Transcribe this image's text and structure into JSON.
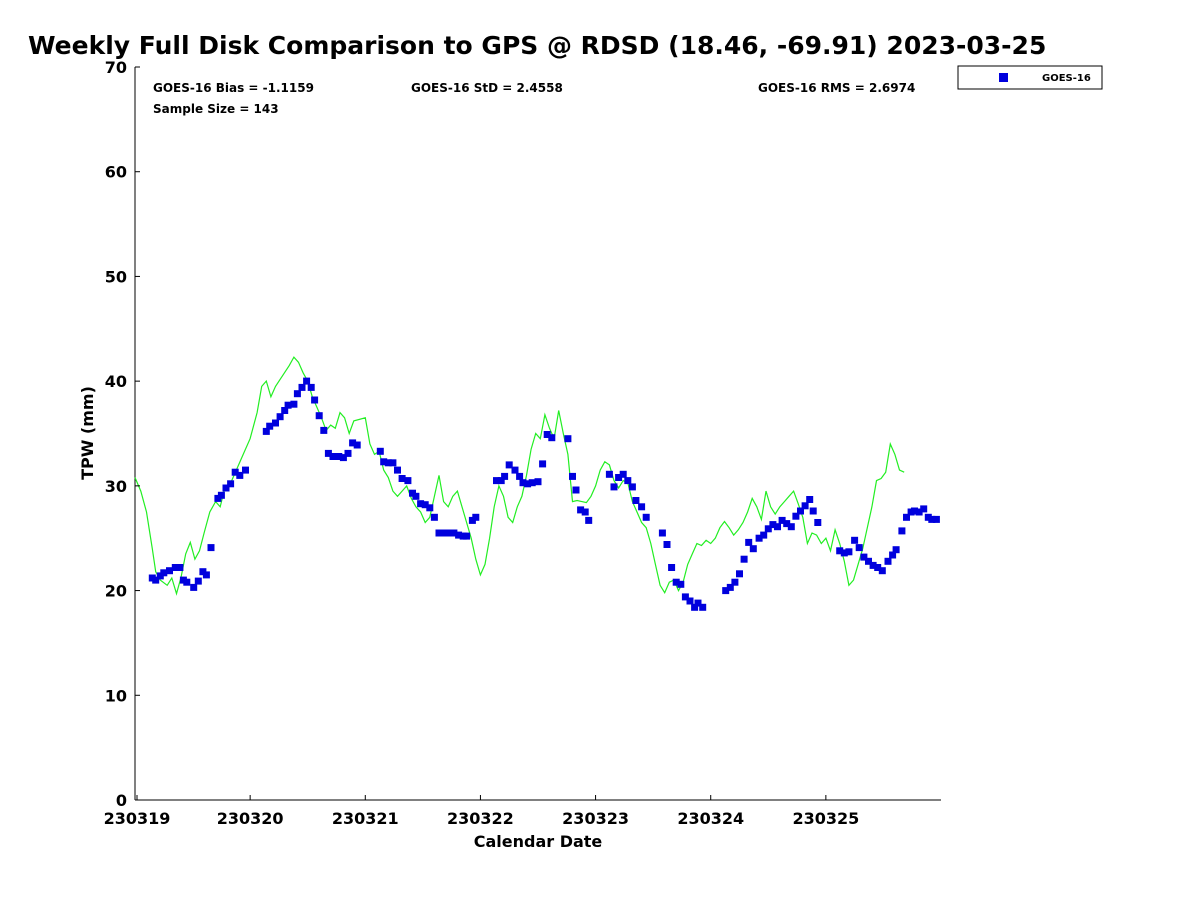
{
  "chart_data": {
    "type": "line+scatter",
    "title": "Weekly Full Disk Comparison to GPS @ RDSD (18.46, -69.91) 2023-03-25",
    "xlabel": "Calendar Date",
    "ylabel": "TPW (mm)",
    "xlim": [
      0,
      7
    ],
    "ylim": [
      0,
      70
    ],
    "yticks": [
      0,
      10,
      20,
      30,
      40,
      50,
      60,
      70
    ],
    "xticks": [
      {
        "value": 0,
        "label": "230319"
      },
      {
        "value": 1,
        "label": "230320"
      },
      {
        "value": 2,
        "label": "230321"
      },
      {
        "value": 3,
        "label": "230322"
      },
      {
        "value": 4,
        "label": "230323"
      },
      {
        "value": 5,
        "label": "230324"
      },
      {
        "value": 6,
        "label": "230325"
      }
    ],
    "stats": {
      "bias": "GOES-16 Bias = -1.1159",
      "std": "GOES-16 StD = 2.4558",
      "rms": "GOES-16 RMS = 2.6974",
      "sample": "Sample Size = 143"
    },
    "legend": {
      "label": "GOES-16",
      "position": "top-right outside"
    },
    "colors": {
      "goes": "#0000dd",
      "gps": "#22ee22"
    },
    "series": [
      {
        "name": "GPS",
        "kind": "line",
        "points": [
          [
            0.0,
            30.8
          ],
          [
            0.05,
            29.5
          ],
          [
            0.1,
            27.5
          ],
          [
            0.15,
            24.0
          ],
          [
            0.18,
            21.8
          ],
          [
            0.22,
            21.0
          ],
          [
            0.28,
            20.5
          ],
          [
            0.32,
            21.2
          ],
          [
            0.36,
            19.7
          ],
          [
            0.4,
            21.3
          ],
          [
            0.44,
            23.5
          ],
          [
            0.48,
            24.6
          ],
          [
            0.52,
            23.0
          ],
          [
            0.56,
            23.8
          ],
          [
            0.6,
            25.5
          ],
          [
            0.65,
            27.5
          ],
          [
            0.7,
            28.5
          ],
          [
            0.74,
            28.0
          ],
          [
            0.78,
            29.8
          ],
          [
            0.82,
            30.0
          ],
          [
            0.88,
            31.5
          ],
          [
            0.94,
            33.0
          ],
          [
            1.0,
            34.5
          ],
          [
            1.06,
            37.0
          ],
          [
            1.1,
            39.5
          ],
          [
            1.14,
            40.0
          ],
          [
            1.18,
            38.5
          ],
          [
            1.22,
            39.5
          ],
          [
            1.28,
            40.5
          ],
          [
            1.34,
            41.5
          ],
          [
            1.38,
            42.3
          ],
          [
            1.42,
            41.8
          ],
          [
            1.46,
            40.8
          ],
          [
            1.5,
            40.0
          ],
          [
            1.54,
            38.5
          ],
          [
            1.58,
            37.5
          ],
          [
            1.62,
            36.5
          ],
          [
            1.66,
            35.3
          ],
          [
            1.7,
            35.8
          ],
          [
            1.74,
            35.5
          ],
          [
            1.78,
            37.0
          ],
          [
            1.82,
            36.5
          ],
          [
            1.86,
            35.0
          ],
          [
            1.9,
            36.2
          ],
          [
            2.0,
            36.5
          ],
          [
            2.04,
            34.0
          ],
          [
            2.08,
            33.0
          ],
          [
            2.12,
            33.3
          ],
          [
            2.16,
            31.5
          ],
          [
            2.2,
            30.8
          ],
          [
            2.24,
            29.5
          ],
          [
            2.28,
            29.0
          ],
          [
            2.32,
            29.5
          ],
          [
            2.36,
            30.0
          ],
          [
            2.4,
            28.8
          ],
          [
            2.44,
            28.0
          ],
          [
            2.48,
            27.5
          ],
          [
            2.52,
            26.5
          ],
          [
            2.56,
            27.0
          ],
          [
            2.6,
            29.0
          ],
          [
            2.64,
            31.0
          ],
          [
            2.68,
            28.5
          ],
          [
            2.72,
            28.0
          ],
          [
            2.76,
            29.0
          ],
          [
            2.8,
            29.5
          ],
          [
            2.84,
            28.0
          ],
          [
            2.88,
            26.5
          ],
          [
            2.92,
            25.0
          ],
          [
            2.96,
            23.0
          ],
          [
            3.0,
            21.5
          ],
          [
            3.04,
            22.5
          ],
          [
            3.08,
            25.0
          ],
          [
            3.12,
            28.0
          ],
          [
            3.16,
            30.0
          ],
          [
            3.2,
            29.0
          ],
          [
            3.24,
            27.0
          ],
          [
            3.28,
            26.5
          ],
          [
            3.32,
            28.0
          ],
          [
            3.36,
            29.0
          ],
          [
            3.4,
            31.0
          ],
          [
            3.44,
            33.5
          ],
          [
            3.48,
            35.0
          ],
          [
            3.52,
            34.5
          ],
          [
            3.56,
            36.8
          ],
          [
            3.6,
            35.5
          ],
          [
            3.64,
            34.5
          ],
          [
            3.68,
            37.2
          ],
          [
            3.72,
            35.0
          ],
          [
            3.76,
            33.0
          ],
          [
            3.8,
            28.5
          ],
          [
            3.84,
            28.6
          ],
          [
            3.88,
            28.5
          ],
          [
            3.92,
            28.4
          ],
          [
            3.96,
            29.0
          ],
          [
            4.0,
            30.0
          ],
          [
            4.04,
            31.5
          ],
          [
            4.08,
            32.3
          ],
          [
            4.12,
            32.0
          ],
          [
            4.16,
            30.5
          ],
          [
            4.2,
            29.8
          ],
          [
            4.24,
            30.5
          ],
          [
            4.28,
            30.3
          ],
          [
            4.32,
            28.5
          ],
          [
            4.36,
            27.5
          ],
          [
            4.4,
            26.5
          ],
          [
            4.44,
            26.0
          ],
          [
            4.48,
            24.5
          ],
          [
            4.52,
            22.5
          ],
          [
            4.56,
            20.5
          ],
          [
            4.6,
            19.8
          ],
          [
            4.64,
            20.8
          ],
          [
            4.68,
            21.0
          ],
          [
            4.72,
            20.0
          ],
          [
            4.76,
            20.8
          ],
          [
            4.8,
            22.5
          ],
          [
            4.84,
            23.5
          ],
          [
            4.88,
            24.5
          ],
          [
            4.92,
            24.3
          ],
          [
            4.96,
            24.8
          ],
          [
            5.0,
            24.5
          ],
          [
            5.04,
            25.0
          ],
          [
            5.08,
            26.0
          ],
          [
            5.12,
            26.6
          ],
          [
            5.16,
            26.0
          ],
          [
            5.2,
            25.3
          ],
          [
            5.24,
            25.8
          ],
          [
            5.28,
            26.5
          ],
          [
            5.32,
            27.5
          ],
          [
            5.36,
            28.8
          ],
          [
            5.4,
            28.0
          ],
          [
            5.44,
            26.8
          ],
          [
            5.48,
            29.5
          ],
          [
            5.52,
            28.0
          ],
          [
            5.56,
            27.3
          ],
          [
            5.6,
            28.0
          ],
          [
            5.64,
            28.5
          ],
          [
            5.68,
            29.0
          ],
          [
            5.72,
            29.5
          ],
          [
            5.76,
            28.3
          ],
          [
            5.8,
            27.0
          ],
          [
            5.84,
            24.5
          ],
          [
            5.88,
            25.5
          ],
          [
            5.92,
            25.3
          ],
          [
            5.96,
            24.5
          ],
          [
            6.0,
            25.0
          ],
          [
            6.04,
            23.8
          ],
          [
            6.08,
            25.8
          ],
          [
            6.12,
            24.5
          ],
          [
            6.16,
            22.8
          ],
          [
            6.2,
            20.5
          ],
          [
            6.24,
            21.0
          ],
          [
            6.28,
            22.5
          ],
          [
            6.32,
            24.0
          ],
          [
            6.36,
            26.0
          ],
          [
            6.4,
            28.0
          ],
          [
            6.44,
            30.5
          ],
          [
            6.48,
            30.7
          ],
          [
            6.52,
            31.3
          ],
          [
            6.56,
            34.0
          ],
          [
            6.6,
            33.0
          ],
          [
            6.64,
            31.5
          ],
          [
            6.68,
            31.3
          ]
        ]
      },
      {
        "name": "GOES-16",
        "kind": "scatter",
        "points": [
          [
            0.15,
            21.2
          ],
          [
            0.18,
            21.0
          ],
          [
            0.22,
            21.4
          ],
          [
            0.25,
            21.7
          ],
          [
            0.3,
            21.9
          ],
          [
            0.35,
            22.2
          ],
          [
            0.39,
            22.2
          ],
          [
            0.42,
            21.0
          ],
          [
            0.45,
            20.8
          ],
          [
            0.51,
            20.3
          ],
          [
            0.55,
            20.9
          ],
          [
            0.59,
            21.8
          ],
          [
            0.62,
            21.5
          ],
          [
            0.66,
            24.1
          ],
          [
            0.72,
            28.8
          ],
          [
            0.75,
            29.1
          ],
          [
            0.79,
            29.8
          ],
          [
            0.83,
            30.2
          ],
          [
            0.87,
            31.3
          ],
          [
            0.91,
            31.0
          ],
          [
            0.96,
            31.5
          ],
          [
            1.14,
            35.2
          ],
          [
            1.17,
            35.7
          ],
          [
            1.22,
            36.0
          ],
          [
            1.26,
            36.6
          ],
          [
            1.3,
            37.2
          ],
          [
            1.33,
            37.7
          ],
          [
            1.38,
            37.8
          ],
          [
            1.41,
            38.8
          ],
          [
            1.45,
            39.4
          ],
          [
            1.49,
            40.0
          ],
          [
            1.53,
            39.4
          ],
          [
            1.56,
            38.2
          ],
          [
            1.6,
            36.7
          ],
          [
            1.64,
            35.3
          ],
          [
            1.68,
            33.1
          ],
          [
            1.72,
            32.8
          ],
          [
            1.77,
            32.8
          ],
          [
            1.81,
            32.7
          ],
          [
            1.85,
            33.1
          ],
          [
            1.89,
            34.1
          ],
          [
            1.93,
            33.9
          ],
          [
            2.13,
            33.3
          ],
          [
            2.16,
            32.3
          ],
          [
            2.2,
            32.2
          ],
          [
            2.24,
            32.2
          ],
          [
            2.28,
            31.5
          ],
          [
            2.32,
            30.7
          ],
          [
            2.37,
            30.5
          ],
          [
            2.41,
            29.3
          ],
          [
            2.44,
            29.0
          ],
          [
            2.48,
            28.3
          ],
          [
            2.52,
            28.2
          ],
          [
            2.56,
            27.9
          ],
          [
            2.6,
            27.0
          ],
          [
            2.64,
            25.5
          ],
          [
            2.68,
            25.5
          ],
          [
            2.72,
            25.5
          ],
          [
            2.77,
            25.5
          ],
          [
            2.81,
            25.3
          ],
          [
            2.85,
            25.2
          ],
          [
            2.88,
            25.2
          ],
          [
            2.93,
            26.7
          ],
          [
            2.96,
            27.0
          ],
          [
            3.14,
            30.5
          ],
          [
            3.18,
            30.5
          ],
          [
            3.21,
            30.9
          ],
          [
            3.25,
            32.0
          ],
          [
            3.3,
            31.5
          ],
          [
            3.34,
            30.9
          ],
          [
            3.37,
            30.3
          ],
          [
            3.41,
            30.2
          ],
          [
            3.45,
            30.3
          ],
          [
            3.5,
            30.4
          ],
          [
            3.54,
            32.1
          ],
          [
            3.58,
            34.9
          ],
          [
            3.62,
            34.6
          ],
          [
            3.76,
            34.5
          ],
          [
            3.8,
            30.9
          ],
          [
            3.83,
            29.6
          ],
          [
            3.87,
            27.7
          ],
          [
            3.91,
            27.5
          ],
          [
            3.94,
            26.7
          ],
          [
            4.12,
            31.1
          ],
          [
            4.16,
            29.9
          ],
          [
            4.2,
            30.8
          ],
          [
            4.24,
            31.1
          ],
          [
            4.28,
            30.5
          ],
          [
            4.32,
            29.9
          ],
          [
            4.35,
            28.6
          ],
          [
            4.4,
            28.0
          ],
          [
            4.44,
            27.0
          ],
          [
            4.58,
            25.5
          ],
          [
            4.62,
            24.4
          ],
          [
            4.66,
            22.2
          ],
          [
            4.7,
            20.8
          ],
          [
            4.74,
            20.6
          ],
          [
            4.78,
            19.4
          ],
          [
            4.82,
            19.0
          ],
          [
            4.86,
            18.4
          ],
          [
            4.89,
            18.8
          ],
          [
            4.93,
            18.4
          ],
          [
            5.13,
            20.0
          ],
          [
            5.17,
            20.3
          ],
          [
            5.21,
            20.8
          ],
          [
            5.25,
            21.6
          ],
          [
            5.29,
            23.0
          ],
          [
            5.33,
            24.6
          ],
          [
            5.37,
            24.0
          ],
          [
            5.42,
            25.0
          ],
          [
            5.46,
            25.3
          ],
          [
            5.5,
            25.9
          ],
          [
            5.54,
            26.3
          ],
          [
            5.58,
            26.1
          ],
          [
            5.62,
            26.7
          ],
          [
            5.66,
            26.4
          ],
          [
            5.7,
            26.1
          ],
          [
            5.74,
            27.1
          ],
          [
            5.78,
            27.6
          ],
          [
            5.82,
            28.1
          ],
          [
            5.86,
            28.7
          ],
          [
            5.89,
            27.6
          ],
          [
            5.93,
            26.5
          ],
          [
            6.12,
            23.8
          ],
          [
            6.16,
            23.6
          ],
          [
            6.2,
            23.7
          ],
          [
            6.25,
            24.8
          ],
          [
            6.29,
            24.1
          ],
          [
            6.33,
            23.2
          ],
          [
            6.37,
            22.8
          ],
          [
            6.41,
            22.4
          ],
          [
            6.45,
            22.2
          ],
          [
            6.49,
            21.9
          ],
          [
            6.54,
            22.8
          ],
          [
            6.58,
            23.4
          ],
          [
            6.61,
            23.9
          ],
          [
            6.66,
            25.7
          ],
          [
            6.7,
            27.0
          ],
          [
            6.74,
            27.5
          ],
          [
            6.77,
            27.6
          ],
          [
            6.81,
            27.5
          ],
          [
            6.85,
            27.8
          ],
          [
            6.89,
            27.0
          ],
          [
            6.92,
            26.8
          ],
          [
            6.96,
            26.8
          ]
        ]
      }
    ]
  }
}
